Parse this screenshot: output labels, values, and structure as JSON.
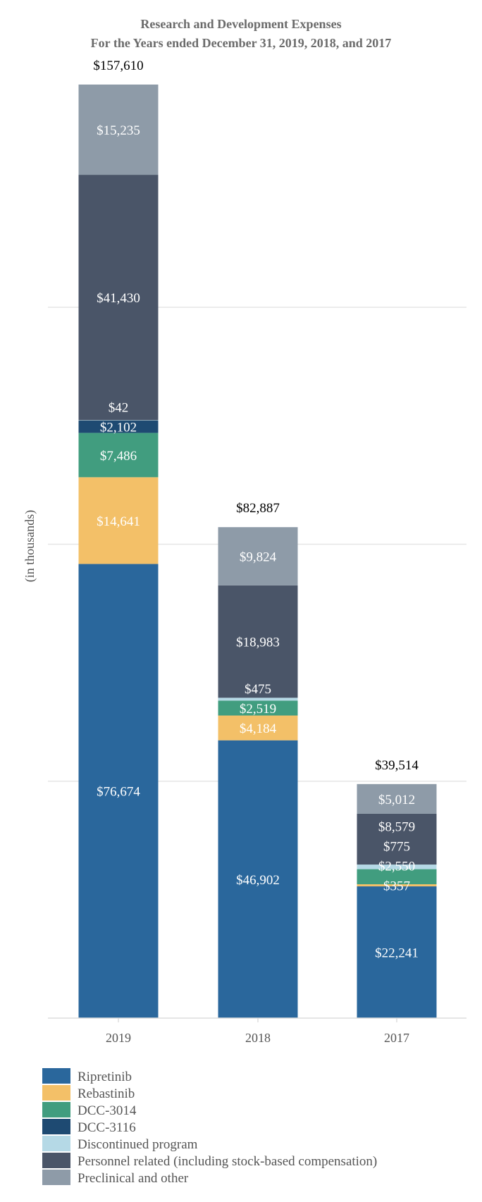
{
  "chart_data": {
    "type": "bar",
    "stacked": true,
    "title_line1": "Research and Development Expenses",
    "title_line2": "For the Years ended December 31, 2019, 2018, and 2017",
    "ylabel": "(in thousands)",
    "xlabel": "",
    "ylim": [
      0,
      160000
    ],
    "grid": true,
    "legend_position": "bottom-left",
    "categories": [
      "2019",
      "2018",
      "2017"
    ],
    "series": [
      {
        "name": "Ripretinib",
        "color": "#2a679c",
        "values": [
          76674,
          46902,
          22241
        ],
        "labels": [
          "$76,674",
          "$46,902",
          "$22,241"
        ]
      },
      {
        "name": "Rebastinib",
        "color": "#f3c068",
        "values": [
          14641,
          4184,
          357
        ],
        "labels": [
          "$14,641",
          "$4,184",
          "$357"
        ]
      },
      {
        "name": "DCC-3014",
        "color": "#419d7f",
        "values": [
          7486,
          2519,
          2550
        ],
        "labels": [
          "$7,486",
          "$2,519",
          "$2,550"
        ]
      },
      {
        "name": "DCC-3116",
        "color": "#1e4a72",
        "values": [
          2102,
          0,
          0
        ],
        "labels": [
          "$2,102",
          "",
          ""
        ]
      },
      {
        "name": "Discontinued program",
        "color": "#b5d9e6",
        "values": [
          42,
          475,
          775
        ],
        "labels": [
          "$42",
          "$475",
          "$775"
        ]
      },
      {
        "name": "Personnel related (including stock-based compensation)",
        "color": "#4a5568",
        "values": [
          41430,
          18983,
          8579
        ],
        "labels": [
          "$41,430",
          "$18,983",
          "$8,579"
        ]
      },
      {
        "name": "Preclinical and other",
        "color": "#8e9ba8",
        "values": [
          15235,
          9824,
          5012
        ],
        "labels": [
          "$15,235",
          "$9,824",
          "$5,012"
        ]
      }
    ],
    "totals": [
      157610,
      82887,
      39514
    ],
    "total_labels": [
      "$157,610",
      "$82,887",
      "$39,514"
    ]
  }
}
